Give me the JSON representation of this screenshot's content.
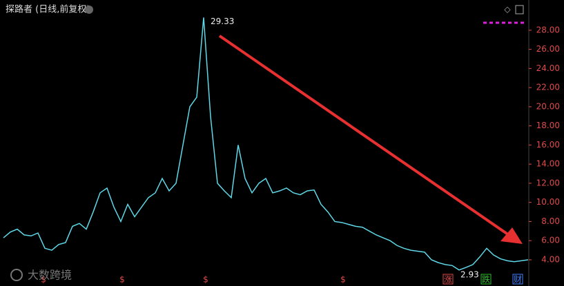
{
  "chart_data": {
    "type": "line",
    "title": "探路者 (日线,前复权)",
    "series": [
      {
        "name": null,
        "color": "#5fd8e8",
        "values": [
          6.3,
          6.9,
          7.2,
          6.6,
          6.5,
          6.8,
          5.2,
          5.0,
          5.6,
          5.8,
          7.5,
          7.8,
          7.2,
          9.0,
          11,
          11.5,
          9.5,
          8.0,
          9.8,
          8.5,
          9.5,
          10.5,
          11.0,
          12.5,
          11.2,
          12,
          16,
          20,
          21,
          29.33,
          19,
          12,
          11.2,
          10.5,
          16,
          12.5,
          11,
          12,
          12.5,
          11,
          11.2,
          11.5,
          11,
          10.8,
          11.2,
          11.3,
          9.8,
          9,
          8,
          7.9,
          7.7,
          7.5,
          7.4,
          7.0,
          6.6,
          6.3,
          6.0,
          5.5,
          5.2,
          5.0,
          4.9,
          4.8,
          4.0,
          3.7,
          3.5,
          3.4,
          2.93,
          3.2,
          3.5,
          4.3,
          5.2,
          4.5,
          4.1,
          3.9,
          3.8,
          3.9,
          4.0
        ]
      }
    ],
    "ylim": [
      2.7,
      30.8
    ],
    "yticks": [
      {
        "value": 4,
        "label": "4.00"
      },
      {
        "value": 6,
        "label": "6.00"
      },
      {
        "value": 8,
        "label": "8.00"
      },
      {
        "value": 10,
        "label": "10.00"
      },
      {
        "value": 12,
        "label": "12.00"
      },
      {
        "value": 14,
        "label": "14.00"
      },
      {
        "value": 16,
        "label": "16.00"
      },
      {
        "value": 18,
        "label": "18.00"
      },
      {
        "value": 20,
        "label": "20.00"
      },
      {
        "value": 22,
        "label": "22.00"
      },
      {
        "value": 24,
        "label": "24.00"
      },
      {
        "value": 26,
        "label": "26.00"
      },
      {
        "value": 28,
        "label": "28.00"
      }
    ],
    "axis_color": "#e04a4a",
    "event_markers": [
      "$",
      "$",
      "$",
      "$",
      "涨",
      "跌",
      "财"
    ],
    "watermark": "大数跨境"
  }
}
